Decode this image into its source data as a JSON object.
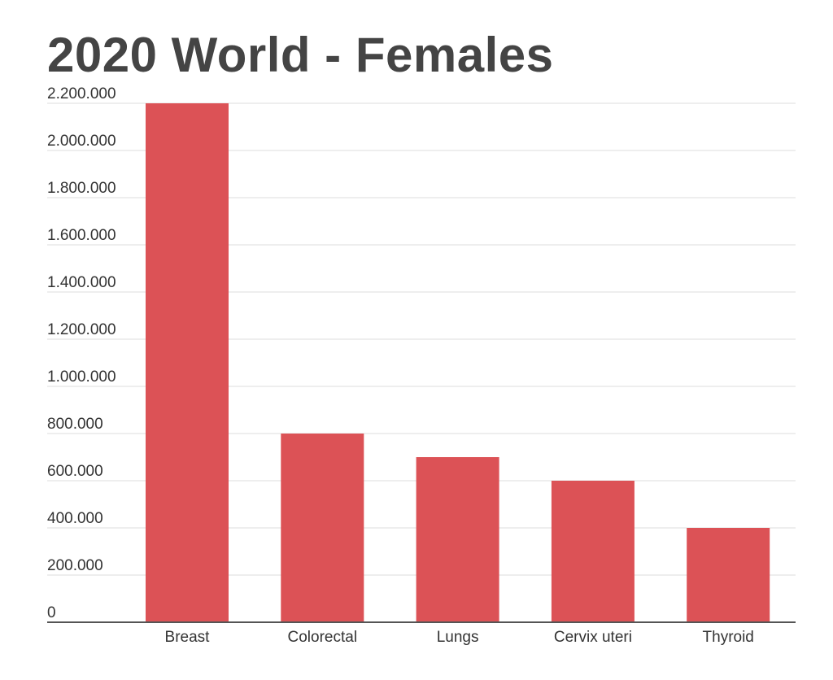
{
  "chart_data": {
    "type": "bar",
    "title": "2020 World - Females",
    "xlabel": "",
    "ylabel": "",
    "categories": [
      "Breast",
      "Colorectal",
      "Lungs",
      "Cervix uteri",
      "Thyroid"
    ],
    "values": [
      2200000,
      800000,
      700000,
      600000,
      400000
    ],
    "ylim": [
      0,
      2200000
    ],
    "y_ticks": [
      0,
      200000,
      400000,
      600000,
      800000,
      1000000,
      1200000,
      1400000,
      1600000,
      1800000,
      2000000,
      2200000
    ],
    "y_tick_labels": [
      "0",
      "200.000",
      "400.000",
      "600.000",
      "800.000",
      "1.000.000",
      "1.200.000",
      "1.400.000",
      "1.600.000",
      "1.800.000",
      "2.000.000",
      "2.200.000"
    ],
    "grid": true,
    "legend": "none",
    "bar_color": "#dc5256",
    "grid_color": "#dddddd",
    "axis_color": "#555555",
    "text_color": "#333333",
    "title_color": "#444444"
  }
}
